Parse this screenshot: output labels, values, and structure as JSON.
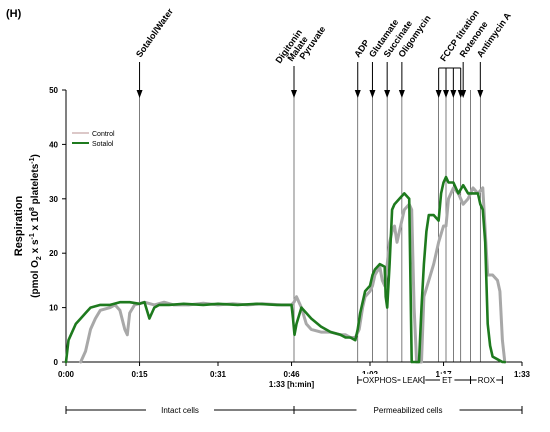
{
  "panel_label": "(H)",
  "chart_data": {
    "type": "line",
    "ylabel_line1": "Respiration",
    "ylabel_line2_parts": {
      "a": "(pmol O",
      "a_sub": "2",
      "b": " x s",
      "b_sup": "-1",
      "c": " x 10",
      "c_sup": "8",
      "d": " platelets",
      "d_sup": "-1",
      "e": ")"
    },
    "xlabel": "1:33 [h:min]",
    "xlim": [
      0,
      93
    ],
    "ylim": [
      0,
      50
    ],
    "x_ticks": [
      {
        "value": 0,
        "label": "0:00"
      },
      {
        "value": 15,
        "label": "0:15"
      },
      {
        "value": 31,
        "label": "0:31"
      },
      {
        "value": 46,
        "label": "0:46"
      },
      {
        "value": 62,
        "label": "1:02"
      },
      {
        "value": 77,
        "label": "1:17"
      },
      {
        "value": 93,
        "label": "1:33"
      }
    ],
    "y_ticks": [
      0,
      10,
      20,
      30,
      40,
      50
    ],
    "legend": {
      "placement": "top-left",
      "entries": [
        {
          "name": "Control",
          "color": "#c8a8a8"
        },
        {
          "name": "Sotalol",
          "color": "#1e7a1e"
        }
      ]
    },
    "injections": [
      {
        "x": 15,
        "label": "Sotalol/Water"
      },
      {
        "x": 46.5,
        "label": "Digitonin Malate Pyruvate"
      },
      {
        "x": 59.5,
        "label": "ADP"
      },
      {
        "x": 62.5,
        "label": "Glutamate"
      },
      {
        "x": 65.5,
        "label": "Succinate"
      },
      {
        "x": 68.5,
        "label": "Oligomycin"
      },
      {
        "x": 76,
        "label": "FCCP titration"
      },
      {
        "x": 81,
        "label": "Rotenone"
      },
      {
        "x": 84.5,
        "label": "Antimycin A"
      }
    ],
    "fccp_bracket_x": [
      76,
      77.5,
      79,
      80.5
    ],
    "vertical_lines_x": [
      15,
      46.5,
      59.5,
      62.5,
      65.5,
      68.5,
      76,
      77.5,
      79,
      80.5,
      82.5,
      84.5
    ],
    "states": [
      {
        "label": "OXPHOS",
        "x0": 59.5,
        "x1": 68.5
      },
      {
        "label": "LEAK",
        "x0": 68.5,
        "x1": 73
      },
      {
        "label": "ET",
        "x0": 73,
        "x1": 82.5
      },
      {
        "label": "ROX",
        "x0": 82.5,
        "x1": 89
      }
    ],
    "phases": [
      {
        "label": "Intact cells",
        "x0": 0,
        "x1": 46.5
      },
      {
        "label": "Permeabilized cells",
        "x0": 46.5,
        "x1": 93
      }
    ],
    "series": [
      {
        "name": "Control",
        "color": "#a8a8a8",
        "points": [
          [
            3,
            0
          ],
          [
            4,
            2
          ],
          [
            5,
            6
          ],
          [
            6,
            8
          ],
          [
            7,
            9.5
          ],
          [
            9,
            10
          ],
          [
            10,
            10.5
          ],
          [
            11,
            9.5
          ],
          [
            12,
            6
          ],
          [
            12.5,
            5
          ],
          [
            13,
            9
          ],
          [
            14,
            10.5
          ],
          [
            16,
            11
          ],
          [
            18,
            10.5
          ],
          [
            20,
            11
          ],
          [
            22,
            10.5
          ],
          [
            25,
            10.5
          ],
          [
            28,
            10.8
          ],
          [
            31,
            10.5
          ],
          [
            34,
            10.7
          ],
          [
            37,
            10.5
          ],
          [
            40,
            10.7
          ],
          [
            44,
            10.5
          ],
          [
            46,
            10.5
          ],
          [
            46.5,
            11
          ],
          [
            47,
            12
          ],
          [
            48,
            10
          ],
          [
            49,
            7
          ],
          [
            50,
            6
          ],
          [
            52,
            5.5
          ],
          [
            54,
            5.5
          ],
          [
            56,
            5
          ],
          [
            57,
            5
          ],
          [
            58,
            4.5
          ],
          [
            59,
            4.5
          ],
          [
            59.8,
            6
          ],
          [
            60.5,
            10
          ],
          [
            61,
            12
          ],
          [
            62,
            13
          ],
          [
            62.5,
            14
          ],
          [
            63,
            16
          ],
          [
            64,
            17.5
          ],
          [
            64.5,
            15
          ],
          [
            65,
            14
          ],
          [
            65.5,
            18
          ],
          [
            66,
            22
          ],
          [
            66.5,
            24
          ],
          [
            67,
            25
          ],
          [
            67.5,
            22
          ],
          [
            68,
            24
          ],
          [
            69,
            28
          ],
          [
            70,
            29
          ],
          [
            70.5,
            28
          ],
          [
            71,
            10
          ],
          [
            71.5,
            0
          ],
          [
            72.5,
            0
          ],
          [
            73,
            12
          ],
          [
            74,
            15
          ],
          [
            75,
            18
          ],
          [
            76,
            22
          ],
          [
            77,
            25
          ],
          [
            77.5,
            25
          ],
          [
            78,
            30
          ],
          [
            79,
            32
          ],
          [
            80,
            31
          ],
          [
            81,
            29
          ],
          [
            82,
            30
          ],
          [
            83,
            32
          ],
          [
            84,
            31
          ],
          [
            85,
            32
          ],
          [
            86,
            16
          ],
          [
            87,
            16
          ],
          [
            88,
            15
          ],
          [
            88.5,
            13
          ],
          [
            89,
            4
          ],
          [
            89.5,
            0
          ]
        ]
      },
      {
        "name": "Sotalol",
        "color": "#1e7a1e",
        "points": [
          [
            0,
            0
          ],
          [
            0.5,
            4
          ],
          [
            1,
            5
          ],
          [
            2,
            7
          ],
          [
            3,
            8
          ],
          [
            4,
            9
          ],
          [
            5,
            10
          ],
          [
            7,
            10.5
          ],
          [
            9,
            10.5
          ],
          [
            11,
            11
          ],
          [
            13,
            11
          ],
          [
            15,
            10.7
          ],
          [
            16,
            11
          ],
          [
            17,
            8
          ],
          [
            18,
            10
          ],
          [
            19,
            10.5
          ],
          [
            21,
            10.5
          ],
          [
            24,
            10.7
          ],
          [
            28,
            10.5
          ],
          [
            31,
            10.7
          ],
          [
            35,
            10.5
          ],
          [
            39,
            10.7
          ],
          [
            43,
            10.5
          ],
          [
            46,
            10.5
          ],
          [
            46.3,
            8
          ],
          [
            46.6,
            5
          ],
          [
            47,
            7
          ],
          [
            48,
            10
          ],
          [
            49,
            9
          ],
          [
            50,
            8
          ],
          [
            52,
            6.5
          ],
          [
            54,
            5.5
          ],
          [
            56,
            5
          ],
          [
            57,
            4.5
          ],
          [
            58,
            4.5
          ],
          [
            59,
            4
          ],
          [
            59.5,
            6
          ],
          [
            60,
            9
          ],
          [
            61,
            13
          ],
          [
            62,
            14
          ],
          [
            62.5,
            16
          ],
          [
            63,
            17
          ],
          [
            64,
            18
          ],
          [
            65,
            17.5
          ],
          [
            65.2,
            12
          ],
          [
            65.5,
            10
          ],
          [
            66,
            18
          ],
          [
            66.5,
            28
          ],
          [
            67,
            29
          ],
          [
            68,
            30
          ],
          [
            69,
            31
          ],
          [
            70,
            30
          ],
          [
            70.5,
            0
          ],
          [
            72,
            0
          ],
          [
            72.5,
            10
          ],
          [
            73,
            18
          ],
          [
            73.5,
            24
          ],
          [
            74,
            27
          ],
          [
            75,
            27
          ],
          [
            76,
            26
          ],
          [
            76.5,
            31
          ],
          [
            77,
            33
          ],
          [
            77.5,
            34
          ],
          [
            78,
            33
          ],
          [
            79,
            33
          ],
          [
            80,
            31
          ],
          [
            81,
            32.5
          ],
          [
            82,
            31
          ],
          [
            83,
            31
          ],
          [
            84,
            31
          ],
          [
            84.5,
            29
          ],
          [
            85,
            28
          ],
          [
            85.5,
            22
          ],
          [
            86,
            7
          ],
          [
            86.5,
            3
          ],
          [
            87,
            1
          ],
          [
            88,
            0.5
          ],
          [
            89,
            0
          ],
          [
            89.5,
            0
          ]
        ]
      }
    ]
  }
}
